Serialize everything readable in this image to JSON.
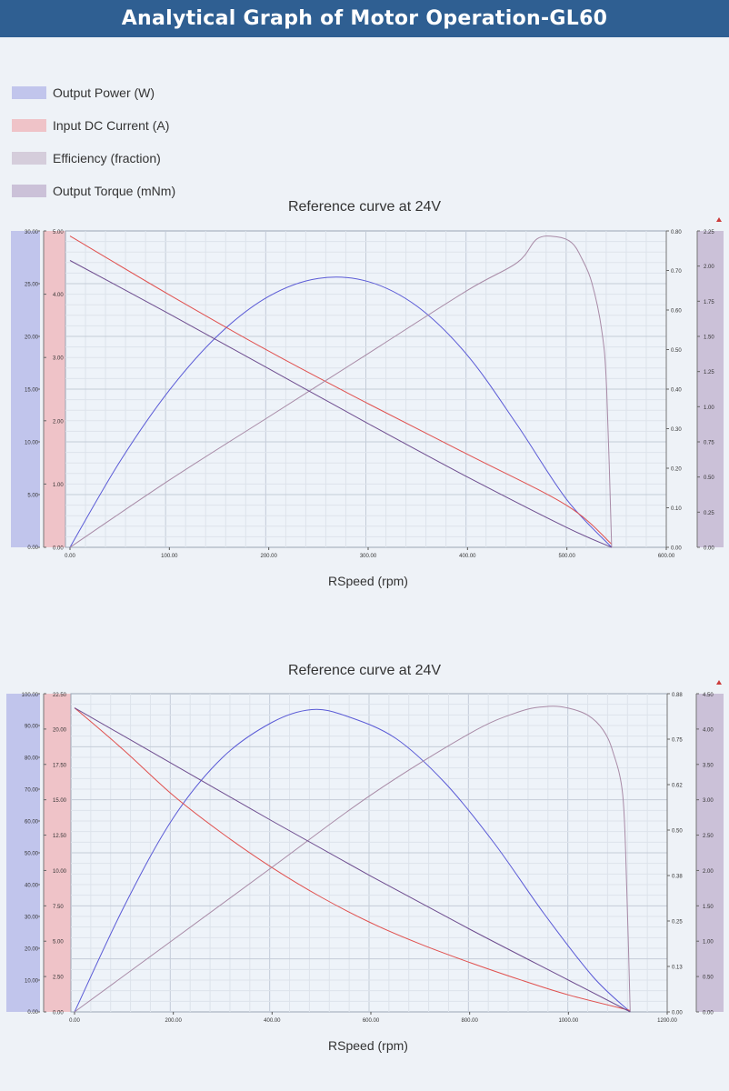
{
  "page_title": "Analytical Graph of Motor Operation-GL60",
  "colors": {
    "header_bg": "#2f5f92",
    "power": "#5a5ad6",
    "current": "#e0504e",
    "efficiency": "#a88aa6",
    "torque": "#6e4d8f",
    "power_band": "#c1c5ec",
    "current_band": "#efc3c8",
    "efficiency_band": "#d5cddb",
    "torque_band": "#cbc1d8"
  },
  "legend": [
    {
      "label": "Output Power (W)",
      "color": "#c1c5ec"
    },
    {
      "label": "Input DC Current (A)",
      "color": "#efc3c8"
    },
    {
      "label": "Efficiency (fraction)",
      "color": "#d5cddb"
    },
    {
      "label": "Output Torque (mNm)",
      "color": "#cbc1d8"
    }
  ],
  "chart_data": [
    {
      "type": "line",
      "title": "Reference curve at 24V",
      "xlabel": "RSpeed (rpm)",
      "xlim": [
        0,
        600
      ],
      "x_ticks": [
        "0.00",
        "100.00",
        "200.00",
        "300.00",
        "400.00",
        "500.00",
        "600.00"
      ],
      "axes": {
        "power": {
          "range": [
            0,
            30
          ],
          "ticks": [
            "0.00",
            "5.00",
            "10.00",
            "15.00",
            "20.00",
            "25.00",
            "30.00"
          ]
        },
        "current": {
          "range": [
            0,
            5
          ],
          "ticks": [
            "0.00",
            "1.00",
            "2.00",
            "3.00",
            "4.00",
            "5.00"
          ]
        },
        "efficiency": {
          "range": [
            0,
            0.8
          ],
          "ticks": [
            "0.00",
            "0.10",
            "0.20",
            "0.30",
            "0.40",
            "0.50",
            "0.60",
            "0.70",
            "0.80"
          ]
        },
        "torque": {
          "range": [
            0,
            2.25
          ],
          "ticks": [
            "0.00",
            "0.25",
            "0.50",
            "0.75",
            "1.00",
            "1.25",
            "1.50",
            "1.75",
            "2.00",
            "2.25"
          ]
        }
      },
      "series": [
        {
          "name": "Output Power (W)",
          "axis": "power",
          "points": [
            [
              0,
              0
            ],
            [
              50,
              8.1
            ],
            [
              100,
              14.9
            ],
            [
              150,
              20.2
            ],
            [
              200,
              23.8
            ],
            [
              250,
              25.5
            ],
            [
              300,
              25.2
            ],
            [
              350,
              22.8
            ],
            [
              400,
              18.2
            ],
            [
              450,
              11.6
            ],
            [
              500,
              4.5
            ],
            [
              545,
              0
            ]
          ]
        },
        {
          "name": "Input DC Current (A)",
          "axis": "current",
          "points": [
            [
              0,
              4.92
            ],
            [
              100,
              3.99
            ],
            [
              200,
              3.1
            ],
            [
              300,
              2.27
            ],
            [
              400,
              1.47
            ],
            [
              500,
              0.66
            ],
            [
              545,
              0.05
            ]
          ]
        },
        {
          "name": "Efficiency (fraction)",
          "axis": "efficiency",
          "points": [
            [
              0,
              0
            ],
            [
              100,
              0.17
            ],
            [
              200,
              0.33
            ],
            [
              300,
              0.49
            ],
            [
              400,
              0.65
            ],
            [
              450,
              0.72
            ],
            [
              470,
              0.78
            ],
            [
              490,
              0.785
            ],
            [
              505,
              0.77
            ],
            [
              515,
              0.73
            ],
            [
              525,
              0.67
            ],
            [
              535,
              0.55
            ],
            [
              540,
              0.4
            ],
            [
              545,
              0
            ]
          ]
        },
        {
          "name": "Output Torque (mNm)",
          "axis": "torque",
          "points": [
            [
              0,
              2.04
            ],
            [
              100,
              1.66
            ],
            [
              200,
              1.27
            ],
            [
              300,
              0.88
            ],
            [
              400,
              0.5
            ],
            [
              500,
              0.14
            ],
            [
              545,
              0
            ]
          ]
        }
      ]
    },
    {
      "type": "line",
      "title": "Reference curve at 24V",
      "xlabel": "RSpeed (rpm)",
      "xlim": [
        0,
        1200
      ],
      "x_ticks": [
        "0.00",
        "200.00",
        "400.00",
        "600.00",
        "800.00",
        "1000.00",
        "1200.00"
      ],
      "axes": {
        "power": {
          "range": [
            0,
            100
          ],
          "ticks": [
            "0.00",
            "10.00",
            "20.00",
            "30.00",
            "40.00",
            "50.00",
            "60.00",
            "70.00",
            "80.00",
            "90.00",
            "100.00"
          ]
        },
        "current": {
          "range": [
            0,
            22.5
          ],
          "ticks": [
            "0.00",
            "2.50",
            "5.00",
            "7.50",
            "10.00",
            "12.50",
            "15.00",
            "17.50",
            "20.00",
            "22.50"
          ]
        },
        "efficiency": {
          "range": [
            0,
            0.88
          ],
          "ticks": [
            "0.00",
            "0.13",
            "0.25",
            "0.38",
            "0.50",
            "0.62",
            "0.75",
            "0.88"
          ]
        },
        "torque": {
          "range": [
            0,
            4.5
          ],
          "ticks": [
            "0.00",
            "0.50",
            "1.00",
            "1.50",
            "2.00",
            "2.50",
            "3.00",
            "3.50",
            "4.00",
            "4.50"
          ]
        }
      },
      "series": [
        {
          "name": "Output Power (W)",
          "axis": "power",
          "points": [
            [
              0,
              0
            ],
            [
              100,
              33
            ],
            [
              200,
              61
            ],
            [
              300,
              80
            ],
            [
              400,
              91
            ],
            [
              480,
              95
            ],
            [
              550,
              93
            ],
            [
              650,
              86
            ],
            [
              750,
              72
            ],
            [
              850,
              53
            ],
            [
              950,
              31
            ],
            [
              1050,
              11
            ],
            [
              1125,
              0
            ]
          ]
        },
        {
          "name": "Input DC Current (A)",
          "axis": "current",
          "points": [
            [
              0,
              21.5
            ],
            [
              100,
              18.5
            ],
            [
              200,
              15.3
            ],
            [
              300,
              12.6
            ],
            [
              400,
              10.2
            ],
            [
              500,
              8.1
            ],
            [
              600,
              6.3
            ],
            [
              700,
              4.8
            ],
            [
              800,
              3.5
            ],
            [
              900,
              2.3
            ],
            [
              1000,
              1.2
            ],
            [
              1125,
              0.1
            ]
          ]
        },
        {
          "name": "Efficiency (fraction)",
          "axis": "efficiency",
          "points": [
            [
              0,
              0
            ],
            [
              200,
              0.2
            ],
            [
              400,
              0.4
            ],
            [
              600,
              0.6
            ],
            [
              800,
              0.77
            ],
            [
              900,
              0.83
            ],
            [
              960,
              0.845
            ],
            [
              1000,
              0.84
            ],
            [
              1040,
              0.82
            ],
            [
              1070,
              0.78
            ],
            [
              1090,
              0.72
            ],
            [
              1110,
              0.6
            ],
            [
              1118,
              0.35
            ],
            [
              1125,
              0
            ]
          ]
        },
        {
          "name": "Output Torque (mNm)",
          "axis": "torque",
          "points": [
            [
              0,
              4.3
            ],
            [
              200,
              3.5
            ],
            [
              400,
              2.7
            ],
            [
              600,
              1.92
            ],
            [
              800,
              1.17
            ],
            [
              1000,
              0.45
            ],
            [
              1125,
              0
            ]
          ]
        }
      ]
    }
  ]
}
